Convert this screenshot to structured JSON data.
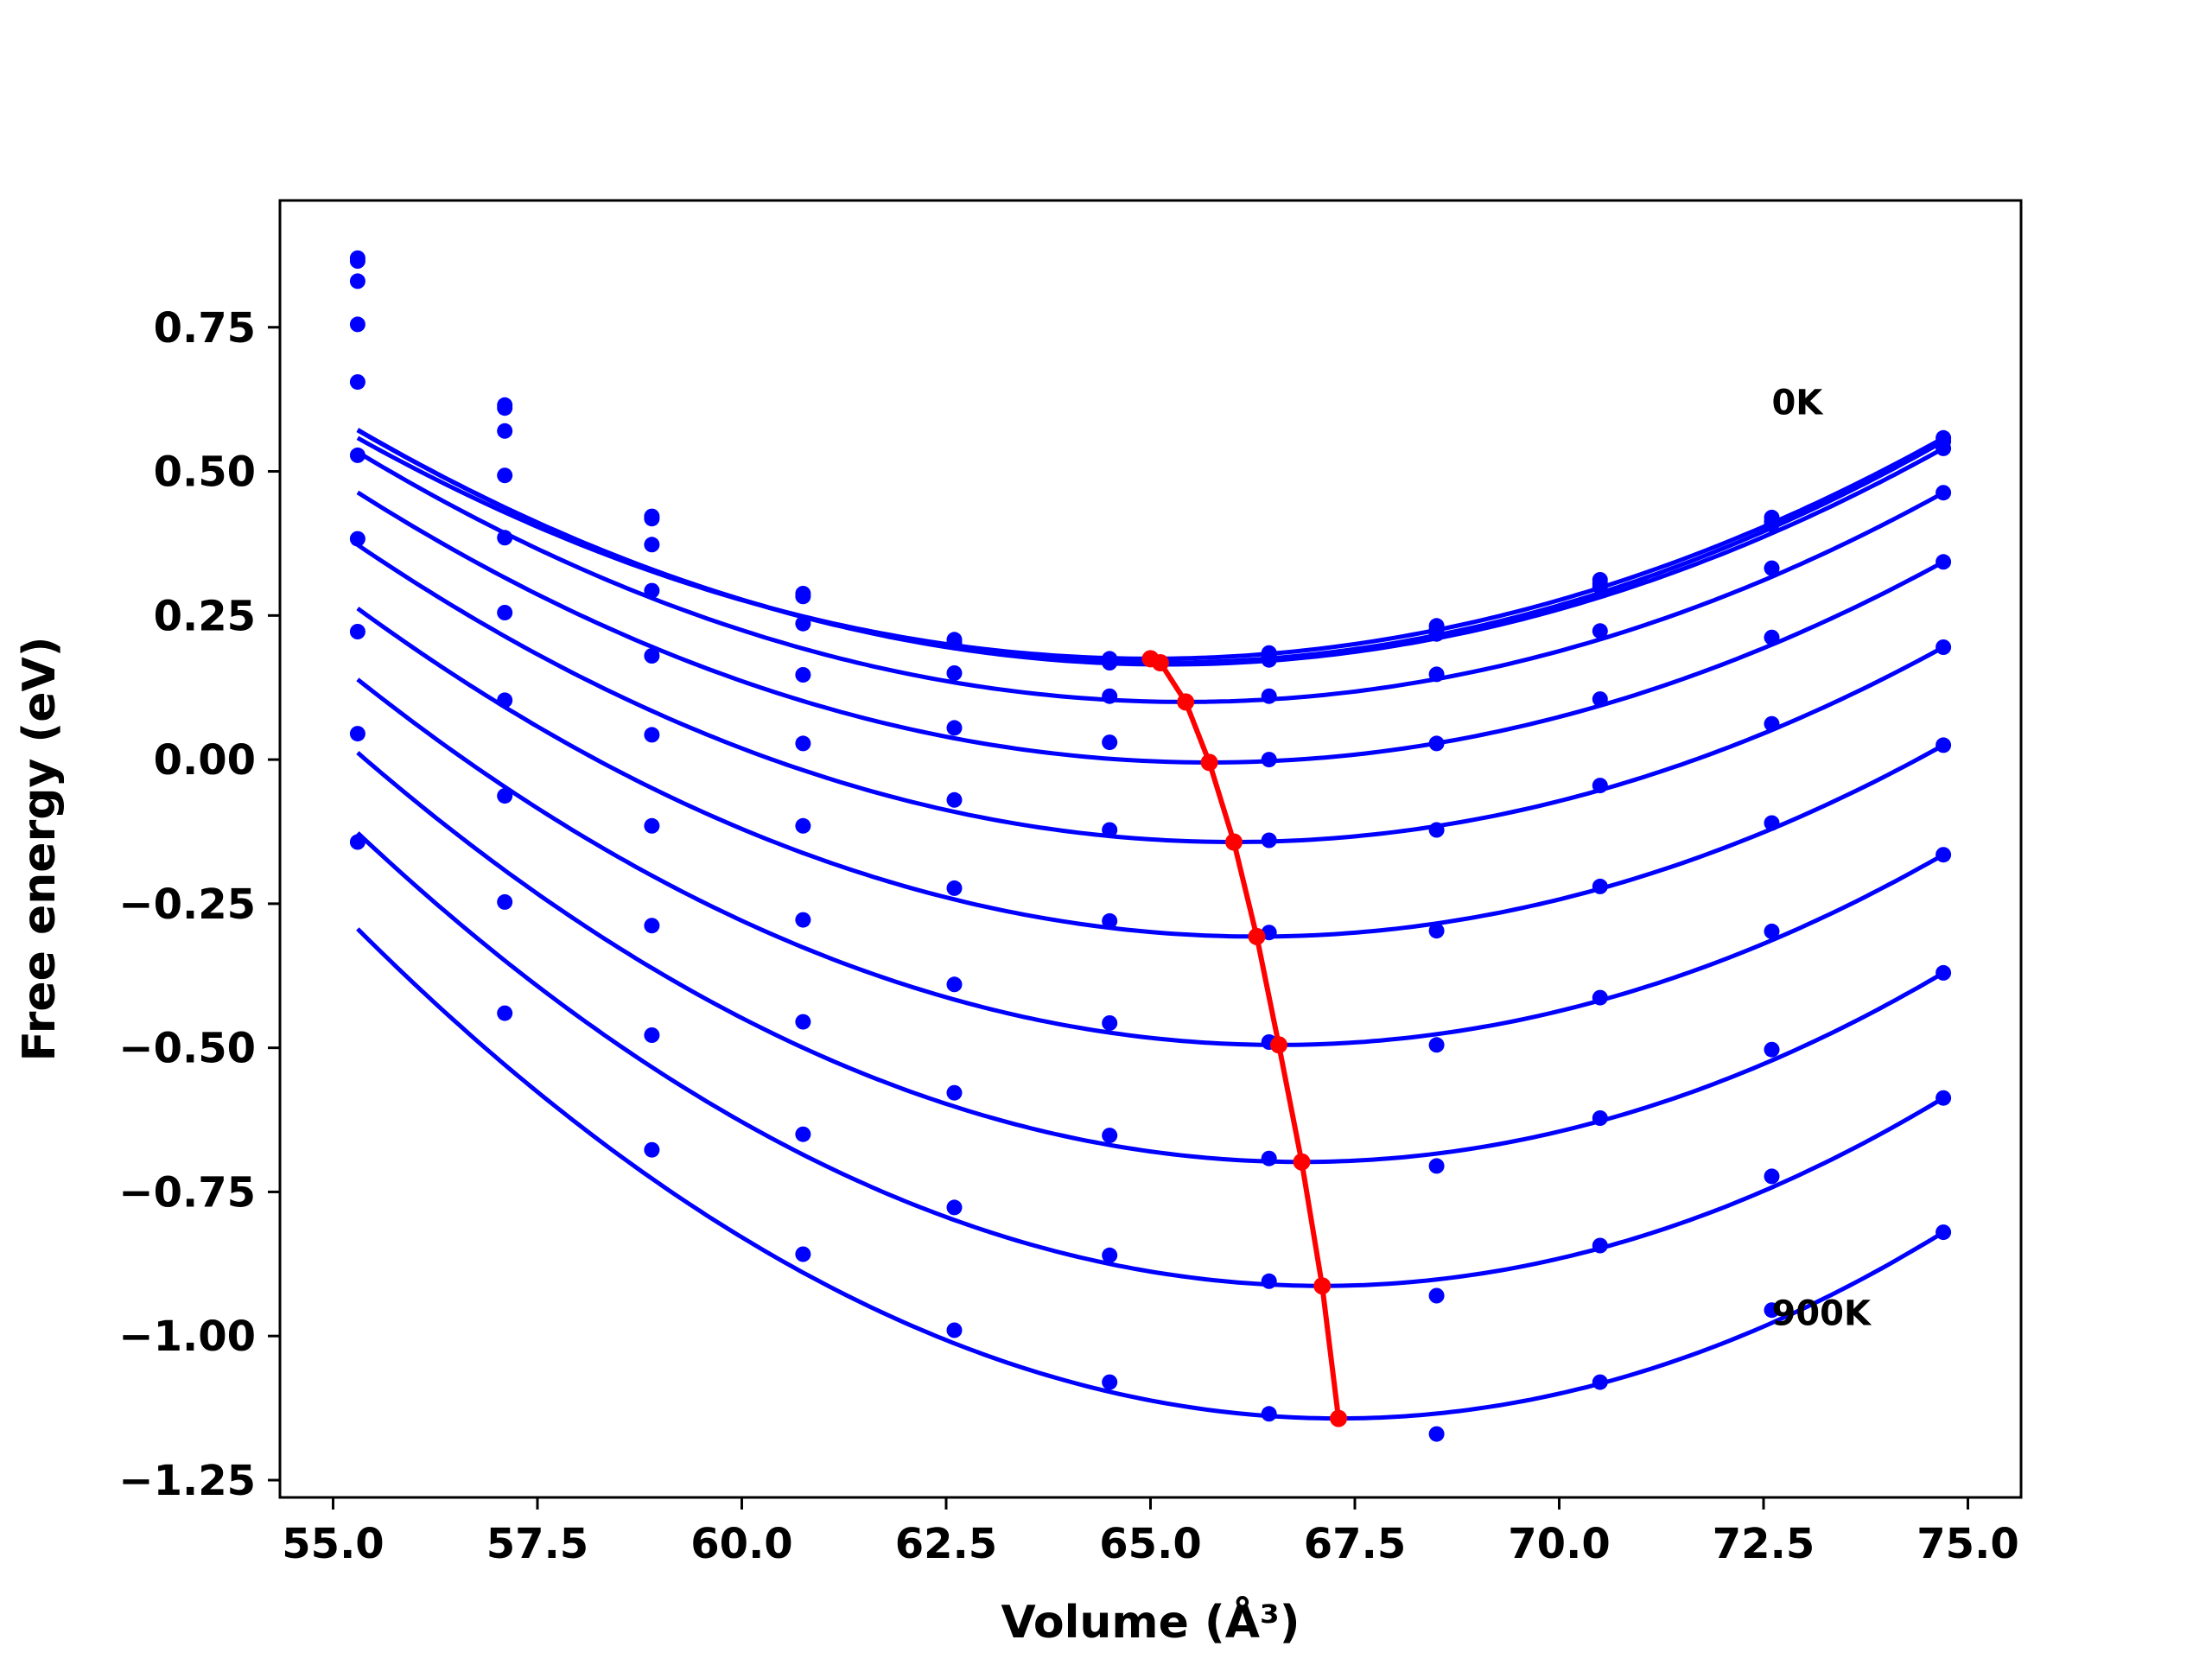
{
  "chart_data": {
    "type": "line",
    "xlabel": "Volume (Å³)",
    "ylabel": "Free energy (eV)",
    "xlim": [
      54.35,
      75.65
    ],
    "ylim": [
      -1.28,
      0.97
    ],
    "x_ticks": [
      55.0,
      57.5,
      60.0,
      62.5,
      65.0,
      67.5,
      70.0,
      72.5,
      75.0
    ],
    "x_tick_labels": [
      "55.0",
      "57.5",
      "60.0",
      "62.5",
      "65.0",
      "67.5",
      "70.0",
      "72.5",
      "75.0"
    ],
    "y_ticks": [
      0.75,
      0.5,
      0.25,
      0.0,
      -0.25,
      -0.5,
      -0.75,
      -1.0,
      -1.25
    ],
    "y_tick_labels": [
      "0.75",
      "0.50",
      "0.25",
      "0.00",
      "−0.25",
      "−0.50",
      "−0.75",
      "−1.00",
      "−1.25"
    ],
    "grid": false,
    "annotations": [
      {
        "text": "0K",
        "x": 72.6,
        "y": 0.62
      },
      {
        "text": "900K",
        "x": 72.6,
        "y": -0.96
      }
    ],
    "x": [
      55.3,
      57.1,
      58.9,
      60.75,
      62.6,
      64.5,
      66.45,
      68.5,
      70.5,
      72.6,
      74.7
    ],
    "series": [
      {
        "color": "#0000ff",
        "fit_minimum": [
          65.0,
          0.175
        ],
        "values": [
          0.87,
          0.615,
          0.422,
          0.288,
          0.208,
          0.175,
          0.185,
          0.232,
          0.312,
          0.42,
          0.558
        ]
      },
      {
        "color": "#0000ff",
        "fit_minimum": [
          65.12,
          0.168
        ],
        "values": [
          0.865,
          0.61,
          0.418,
          0.283,
          0.203,
          0.17,
          0.179,
          0.226,
          0.305,
          0.413,
          0.552
        ]
      },
      {
        "color": "#0000ff",
        "fit_minimum": [
          65.2,
          0.165
        ],
        "values": [
          0.83,
          0.57,
          0.373,
          0.236,
          0.15,
          0.168,
          0.173,
          0.218,
          0.3,
          0.408,
          0.54
        ]
      },
      {
        "color": "#0000ff",
        "fit_minimum": [
          65.43,
          0.1
        ],
        "values": [
          0.755,
          0.493,
          0.293,
          0.147,
          0.055,
          0.11,
          0.11,
          0.148,
          0.223,
          0.332,
          0.463
        ]
      },
      {
        "color": "#0000ff",
        "fit_minimum": [
          65.72,
          -0.005
        ],
        "values": [
          0.655,
          0.385,
          0.18,
          0.028,
          -0.07,
          0.03,
          0.0,
          0.028,
          0.105,
          0.212,
          0.343
        ]
      },
      {
        "color": "#0000ff",
        "fit_minimum": [
          66.02,
          -0.143
        ],
        "values": [
          0.528,
          0.255,
          0.043,
          -0.115,
          -0.223,
          -0.122,
          -0.14,
          -0.122,
          -0.045,
          0.062,
          0.195
        ]
      },
      {
        "color": "#0000ff",
        "fit_minimum": [
          66.3,
          -0.307
        ],
        "values": [
          0.383,
          0.103,
          -0.115,
          -0.278,
          -0.39,
          -0.28,
          -0.3,
          -0.297,
          -0.22,
          -0.11,
          0.025
        ]
      },
      {
        "color": "#0000ff",
        "fit_minimum": [
          66.57,
          -0.495
        ],
        "values": [
          0.222,
          -0.063,
          -0.288,
          -0.455,
          -0.578,
          -0.457,
          -0.49,
          -0.495,
          -0.413,
          -0.298,
          -0.165
        ]
      },
      {
        "color": "#0000ff",
        "fit_minimum": [
          66.85,
          -0.698
        ],
        "values": [
          0.045,
          -0.247,
          -0.478,
          -0.65,
          -0.777,
          -0.652,
          -0.692,
          -0.705,
          -0.622,
          -0.503,
          -0.37
        ]
      },
      {
        "color": "#0000ff",
        "fit_minimum": [
          67.1,
          -0.913
        ],
        "values": [
          -0.143,
          -0.44,
          -0.677,
          -0.858,
          -0.99,
          -0.86,
          -0.905,
          -0.93,
          -0.843,
          -0.723,
          -0.587
        ]
      },
      {
        "color": "#0000ff",
        "fit_minimum": [
          67.3,
          -1.143
        ],
        "values": [
          null,
          null,
          null,
          null,
          null,
          -1.08,
          -1.135,
          -1.17,
          -1.08,
          -0.955,
          -0.82
        ]
      }
    ],
    "equilibrium_line": {
      "color": "#ff0000",
      "x": [
        65.0,
        65.12,
        65.43,
        65.72,
        66.02,
        66.3,
        66.57,
        66.85,
        67.1,
        67.3
      ],
      "y": [
        0.175,
        0.168,
        0.1,
        -0.005,
        -0.143,
        -0.307,
        -0.495,
        -0.698,
        -0.913,
        -1.143
      ]
    }
  }
}
